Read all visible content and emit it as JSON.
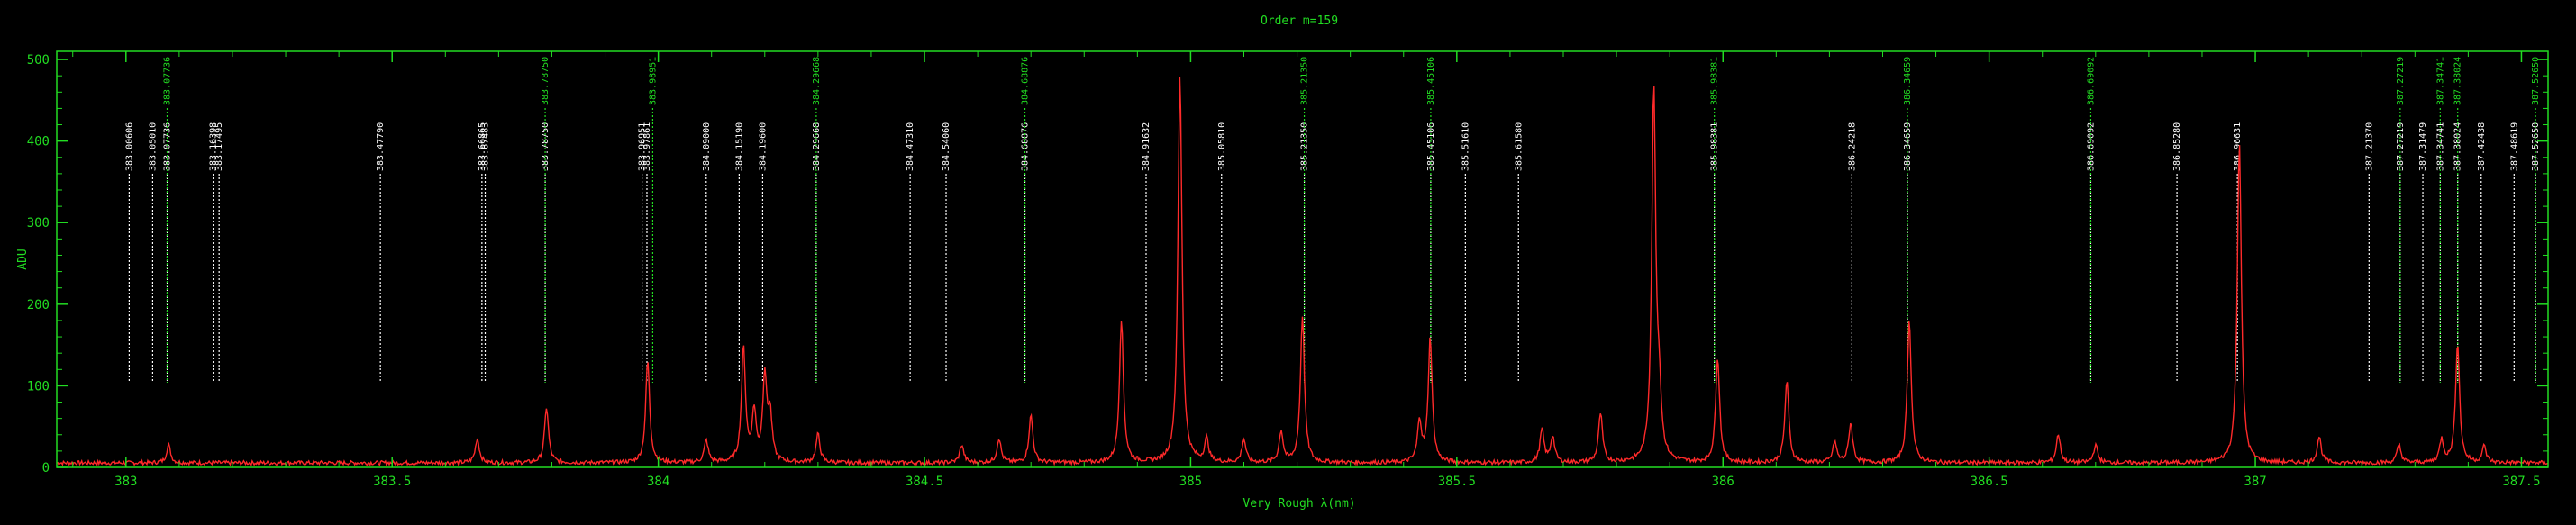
{
  "chart_data": {
    "type": "line",
    "title": "Order m=159",
    "xlabel": "Very Rough λ(nm)",
    "ylabel": "ADU",
    "xlim": [
      382.87,
      387.55
    ],
    "ylim": [
      0,
      510
    ],
    "x_ticks": [
      383,
      383.5,
      384,
      384.5,
      385,
      385.5,
      386,
      386.5,
      387,
      387.5
    ],
    "x_tick_labels": [
      "383",
      "383.5",
      "384",
      "384.5",
      "385",
      "385.5",
      "386",
      "386.5",
      "387",
      "387.5"
    ],
    "y_ticks": [
      0,
      100,
      200,
      300,
      400,
      500
    ],
    "y_tick_labels": [
      "0",
      "100",
      "200",
      "300",
      "400",
      "500"
    ],
    "colors": {
      "axes": "#22dd22",
      "spectrum": "#ff2a2a",
      "line_white": "#ffffff",
      "line_green": "#22dd22",
      "line_orange": "#ffaa00"
    },
    "baseline": 3,
    "peaks": [
      {
        "x": 383.08,
        "y": 22
      },
      {
        "x": 383.66,
        "y": 30
      },
      {
        "x": 383.79,
        "y": 68
      },
      {
        "x": 383.98,
        "y": 125
      },
      {
        "x": 384.09,
        "y": 27
      },
      {
        "x": 384.16,
        "y": 140
      },
      {
        "x": 384.18,
        "y": 60
      },
      {
        "x": 384.2,
        "y": 105
      },
      {
        "x": 384.21,
        "y": 55
      },
      {
        "x": 384.3,
        "y": 35
      },
      {
        "x": 384.57,
        "y": 22
      },
      {
        "x": 384.64,
        "y": 30
      },
      {
        "x": 384.7,
        "y": 58
      },
      {
        "x": 384.87,
        "y": 175
      },
      {
        "x": 384.98,
        "y": 475
      },
      {
        "x": 385.03,
        "y": 28
      },
      {
        "x": 385.1,
        "y": 28
      },
      {
        "x": 385.17,
        "y": 38
      },
      {
        "x": 385.21,
        "y": 180
      },
      {
        "x": 385.43,
        "y": 50
      },
      {
        "x": 385.45,
        "y": 152
      },
      {
        "x": 385.66,
        "y": 40
      },
      {
        "x": 385.68,
        "y": 32
      },
      {
        "x": 385.77,
        "y": 60
      },
      {
        "x": 385.87,
        "y": 455
      },
      {
        "x": 385.88,
        "y": 70
      },
      {
        "x": 385.99,
        "y": 130
      },
      {
        "x": 386.12,
        "y": 100
      },
      {
        "x": 386.21,
        "y": 25
      },
      {
        "x": 386.24,
        "y": 48
      },
      {
        "x": 386.35,
        "y": 175
      },
      {
        "x": 386.63,
        "y": 35
      },
      {
        "x": 386.7,
        "y": 22
      },
      {
        "x": 386.97,
        "y": 395
      },
      {
        "x": 387.12,
        "y": 32
      },
      {
        "x": 387.27,
        "y": 22
      },
      {
        "x": 387.35,
        "y": 28
      },
      {
        "x": 387.38,
        "y": 148
      },
      {
        "x": 387.43,
        "y": 20
      }
    ],
    "lines": [
      {
        "x": 383.00606,
        "label": "383.00606",
        "color": "white"
      },
      {
        "x": 383.0501,
        "label": "383.05010",
        "color": "white"
      },
      {
        "x": 383.07736,
        "label": "383.07736",
        "color": "white"
      },
      {
        "x": 383.07736,
        "label": "383.07736",
        "color": "green",
        "top": true
      },
      {
        "x": 383.16398,
        "label": "383.16398",
        "color": "white"
      },
      {
        "x": 383.17495,
        "label": "383.17495",
        "color": "white"
      },
      {
        "x": 383.4779,
        "label": "383.47790",
        "color": "white"
      },
      {
        "x": 383.66865,
        "label": "383.66865",
        "color": "white"
      },
      {
        "x": 383.67483,
        "label": "383.67483",
        "color": "white"
      },
      {
        "x": 383.7875,
        "label": "383.78750",
        "color": "white"
      },
      {
        "x": 383.7875,
        "label": "383.78750",
        "color": "green",
        "top": true
      },
      {
        "x": 383.96951,
        "label": "383.96951",
        "color": "white"
      },
      {
        "x": 383.97861,
        "label": "383.97861",
        "color": "white"
      },
      {
        "x": 383.98951,
        "label": "383.98951",
        "color": "green",
        "top": true
      },
      {
        "x": 384.09,
        "label": "384.09000",
        "color": "white"
      },
      {
        "x": 384.1519,
        "label": "384.15190",
        "color": "white"
      },
      {
        "x": 384.196,
        "label": "384.19600",
        "color": "white"
      },
      {
        "x": 384.29668,
        "label": "384.29668",
        "color": "white"
      },
      {
        "x": 384.29668,
        "label": "384.29668",
        "color": "green",
        "top": true
      },
      {
        "x": 384.4731,
        "label": "384.47310",
        "color": "white"
      },
      {
        "x": 384.5406,
        "label": "384.54060",
        "color": "white"
      },
      {
        "x": 384.68876,
        "label": "384.68876",
        "color": "white"
      },
      {
        "x": 384.68876,
        "label": "384.68876",
        "color": "green",
        "top": true
      },
      {
        "x": 384.91632,
        "label": "384.91632",
        "color": "white"
      },
      {
        "x": 385.0581,
        "label": "385.05810",
        "color": "white"
      },
      {
        "x": 385.2135,
        "label": "385.21350",
        "color": "white"
      },
      {
        "x": 385.2135,
        "label": "385.21350",
        "color": "green",
        "top": true
      },
      {
        "x": 385.45106,
        "label": "385.45106",
        "color": "white"
      },
      {
        "x": 385.45106,
        "label": "385.45106",
        "color": "green",
        "top": true
      },
      {
        "x": 385.5161,
        "label": "385.51610",
        "color": "white"
      },
      {
        "x": 385.6158,
        "label": "385.61580",
        "color": "white"
      },
      {
        "x": 385.98381,
        "label": "385.98381",
        "color": "white"
      },
      {
        "x": 385.98381,
        "label": "385.98381",
        "color": "green",
        "top": true
      },
      {
        "x": 386.24218,
        "label": "386.24218",
        "color": "white"
      },
      {
        "x": 386.34659,
        "label": "386.34659",
        "color": "white"
      },
      {
        "x": 386.34659,
        "label": "386.34659",
        "color": "green",
        "top": true
      },
      {
        "x": 386.69092,
        "label": "386.69092",
        "color": "white"
      },
      {
        "x": 386.69092,
        "label": "386.69092",
        "color": "green",
        "top": true
      },
      {
        "x": 386.8528,
        "label": "386.85280",
        "color": "white"
      },
      {
        "x": 386.96631,
        "label": "386.96631",
        "color": "white"
      },
      {
        "x": 387.2137,
        "label": "387.21370",
        "color": "white"
      },
      {
        "x": 387.27219,
        "label": "387.27219",
        "color": "white"
      },
      {
        "x": 387.27219,
        "label": "387.27219",
        "color": "green",
        "top": true
      },
      {
        "x": 387.31479,
        "label": "387.31479",
        "color": "white"
      },
      {
        "x": 387.34741,
        "label": "387.34741",
        "color": "white"
      },
      {
        "x": 387.34741,
        "label": "387.34741",
        "color": "green",
        "top": true
      },
      {
        "x": 387.38024,
        "label": "387.38024",
        "color": "white"
      },
      {
        "x": 387.38024,
        "label": "387.38024",
        "color": "green",
        "top": true
      },
      {
        "x": 387.42438,
        "label": "387.42438",
        "color": "white"
      },
      {
        "x": 387.48619,
        "label": "387.48619",
        "color": "white"
      },
      {
        "x": 387.5265,
        "label": "387.52650",
        "color": "white"
      },
      {
        "x": 387.5265,
        "label": "387.52650",
        "color": "green",
        "top": true
      }
    ]
  }
}
